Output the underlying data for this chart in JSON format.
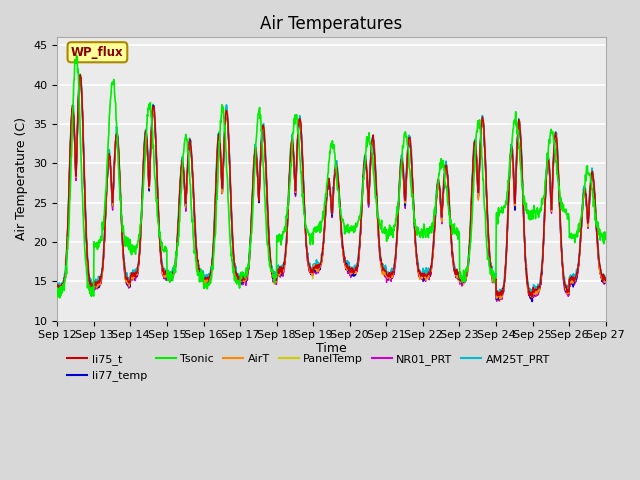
{
  "title": "Air Temperatures",
  "ylabel": "Air Temperature (C)",
  "xlabel": "Time",
  "ylim": [
    10,
    46
  ],
  "yticks": [
    10,
    15,
    20,
    25,
    30,
    35,
    40,
    45
  ],
  "xtick_labels": [
    "Sep 12",
    "Sep 13",
    "Sep 14",
    "Sep 15",
    "Sep 16",
    "Sep 17",
    "Sep 18",
    "Sep 19",
    "Sep 20",
    "Sep 21",
    "Sep 22",
    "Sep 23",
    "Sep 24",
    "Sep 25",
    "Sep 26",
    "Sep 27"
  ],
  "series": {
    "li75_t": {
      "color": "#cc0000",
      "lw": 1.0,
      "zorder": 5
    },
    "li77_temp": {
      "color": "#0000cc",
      "lw": 1.0,
      "zorder": 4
    },
    "Tsonic": {
      "color": "#00ee00",
      "lw": 1.2,
      "zorder": 6
    },
    "AirT": {
      "color": "#ff8800",
      "lw": 1.0,
      "zorder": 5
    },
    "PanelTemp": {
      "color": "#cccc00",
      "lw": 1.0,
      "zorder": 3
    },
    "NR01_PRT": {
      "color": "#cc00cc",
      "lw": 1.0,
      "zorder": 3
    },
    "AM25T_PRT": {
      "color": "#00bbcc",
      "lw": 1.2,
      "zorder": 4
    }
  },
  "annotation_text": "WP_flux",
  "annotation_color": "#880000",
  "annotation_bg": "#ffff99",
  "annotation_border": "#aa8800",
  "bg_color": "#d8d8d8",
  "plot_bg": "#ebebeb",
  "title_fontsize": 12,
  "label_fontsize": 9,
  "tick_fontsize": 8,
  "legend_fontsize": 8,
  "day_peaks_core": [
    41.0,
    33.5,
    37.0,
    32.5,
    36.5,
    34.5,
    35.5,
    29.5,
    33.0,
    33.0,
    29.5,
    35.5,
    35.0,
    33.5,
    28.5
  ],
  "day_peaks_tsonic": [
    43.5,
    40.5,
    37.5,
    33.5,
    37.0,
    36.5,
    36.0,
    32.5,
    33.5,
    33.5,
    30.0,
    35.5,
    35.5,
    34.0,
    29.0
  ],
  "day_mins_core": [
    14.0,
    14.5,
    15.5,
    15.5,
    15.0,
    15.0,
    16.0,
    16.5,
    16.0,
    15.5,
    15.5,
    15.0,
    13.0,
    13.5,
    15.0
  ],
  "day_mins_tsonic": [
    13.5,
    19.5,
    19.0,
    15.5,
    14.5,
    15.5,
    20.5,
    21.5,
    21.5,
    21.0,
    21.0,
    15.5,
    23.5,
    23.5,
    20.5
  ],
  "day_min2_tsonic": [
    14.5,
    21.0,
    24.5,
    19.5,
    14.5,
    14.5,
    21.5,
    22.0,
    22.0,
    22.0,
    21.0,
    14.5,
    23.5,
    23.5,
    20.5
  ]
}
